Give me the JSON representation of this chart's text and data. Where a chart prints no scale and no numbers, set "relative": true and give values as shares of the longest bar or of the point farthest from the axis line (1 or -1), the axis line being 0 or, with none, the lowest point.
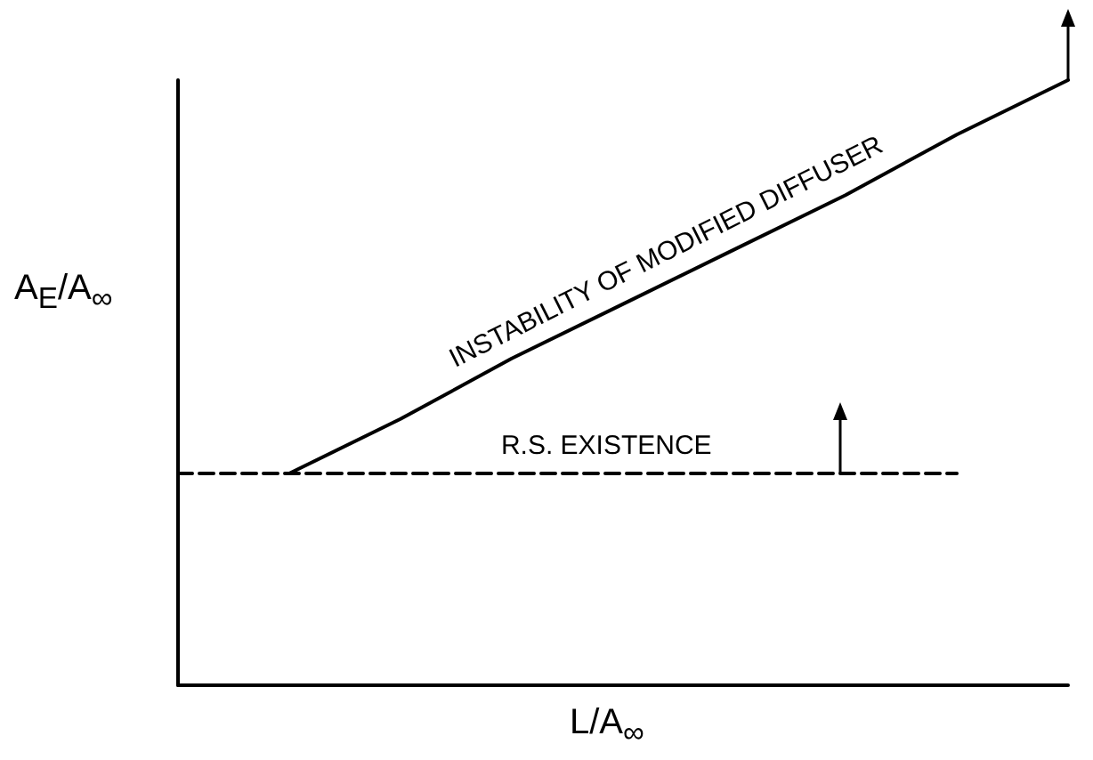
{
  "chart_data": {
    "type": "line",
    "relative": true,
    "marker": "none",
    "xlabel": "L/A$_{∞}$",
    "ylabel": "A$_{E}$/A$_{∞}$",
    "categories": [
      null,
      null,
      null,
      null,
      null,
      null,
      null,
      null,
      null
    ],
    "series": [
      {
        "name": "R.S. EXISTENCE",
        "color": "#000000",
        "line_style": "dashed",
        "values": [
          0.35,
          0.35,
          0.35,
          0.35,
          0.35,
          0.35,
          0.35,
          0.35,
          null
        ]
      },
      {
        "name": "INSTABILITY OF MODIFIED DIFFUSER",
        "color": "#000000",
        "line_style": "solid",
        "values": [
          null,
          0.35,
          0.44,
          0.54,
          0.63,
          0.72,
          0.81,
          0.91,
          1.0
        ]
      }
    ]
  }
}
